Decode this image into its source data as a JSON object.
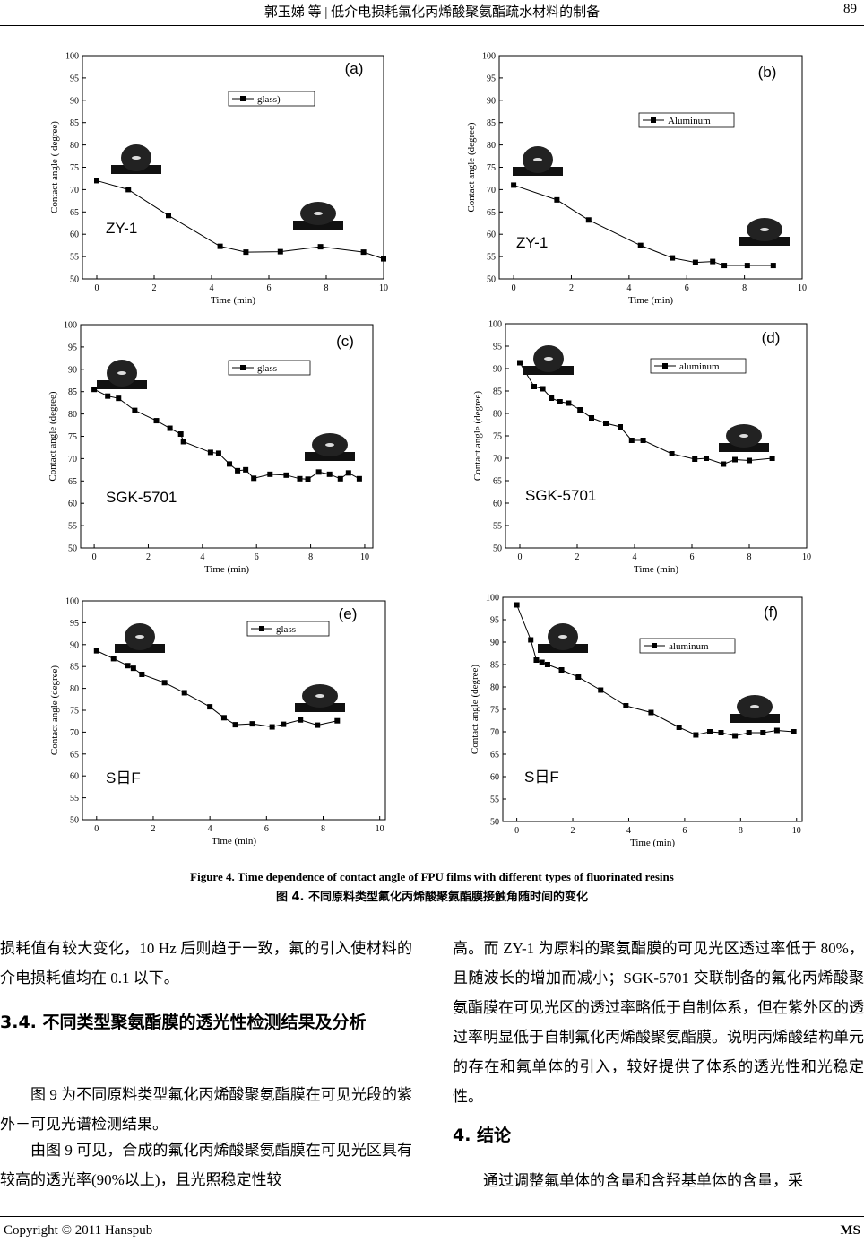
{
  "header": {
    "title": "郭玉娣  等 | 低介电损耗氟化丙烯酸聚氨酯疏水材料的制备",
    "page": "89"
  },
  "chart_data": [
    {
      "type": "line",
      "panel_label": "(a)",
      "sample_label": "ZY-1",
      "x_label": "Time (min)",
      "y_label": "Contact angle ( degree)",
      "x": [
        0,
        1.1,
        2.5,
        4.3,
        5.2,
        6.4,
        7.8,
        9.3,
        10
      ],
      "series": [
        {
          "name": "glass)",
          "color": "#000000",
          "values": [
            72,
            70,
            64.2,
            57.3,
            56,
            56.1,
            57.2,
            56,
            54.5
          ]
        }
      ],
      "xlim": [
        -0.5,
        10
      ],
      "ylim": [
        50,
        100
      ],
      "xticks": [
        0,
        2,
        4,
        6,
        8,
        10
      ],
      "yticks": [
        50,
        55,
        60,
        65,
        70,
        75,
        80,
        85,
        90,
        95,
        100
      ]
    },
    {
      "type": "line",
      "panel_label": "(b)",
      "sample_label": "ZY-1",
      "x_label": "Time (min)",
      "y_label": "Contact angle (degree)",
      "x": [
        0,
        1.5,
        2.6,
        4.4,
        5.5,
        6.3,
        6.9,
        7.3,
        8.1,
        9
      ],
      "series": [
        {
          "name": "Aluminum",
          "color": "#000000",
          "values": [
            71,
            67.7,
            63.2,
            57.5,
            54.7,
            53.7,
            53.9,
            53,
            53,
            53
          ]
        }
      ],
      "xlim": [
        -0.5,
        10
      ],
      "ylim": [
        50,
        100
      ],
      "xticks": [
        0,
        2,
        4,
        6,
        8,
        10
      ],
      "yticks": [
        50,
        55,
        60,
        65,
        70,
        75,
        80,
        85,
        90,
        95,
        100
      ]
    },
    {
      "type": "line",
      "panel_label": "(c)",
      "sample_label": "SGK-5701",
      "x_label": "Time (min)",
      "y_label": "Contact angle (degree)",
      "x": [
        0,
        0.5,
        0.9,
        1.5,
        2.3,
        2.8,
        3.2,
        3.3,
        4.3,
        4.6,
        5,
        5.3,
        5.6,
        5.9,
        6.5,
        7.1,
        7.6,
        7.9,
        8.3,
        8.7,
        9.1,
        9.4,
        9.8
      ],
      "series": [
        {
          "name": "glass",
          "color": "#000000",
          "values": [
            85.5,
            84,
            83.5,
            80.8,
            78.5,
            76.8,
            75.5,
            73.8,
            71.4,
            71.2,
            68.8,
            67.3,
            67.5,
            65.6,
            66.5,
            66.3,
            65.5,
            65.4,
            67,
            66.5,
            65.5,
            66.8,
            65.5
          ]
        }
      ],
      "xlim": [
        -0.5,
        10.3
      ],
      "ylim": [
        50,
        100
      ],
      "xticks": [
        0,
        2,
        4,
        6,
        8,
        10
      ],
      "yticks": [
        50,
        55,
        60,
        65,
        70,
        75,
        80,
        85,
        90,
        95,
        100
      ]
    },
    {
      "type": "line",
      "panel_label": "(d)",
      "sample_label": "SGK-5701",
      "x_label": "Time (min)",
      "y_label": "Contact angle (degree)",
      "x": [
        0,
        0.5,
        0.8,
        1.1,
        1.4,
        1.7,
        2.1,
        2.5,
        3,
        3.5,
        3.9,
        4.3,
        5.3,
        6.1,
        6.5,
        7.1,
        7.5,
        8,
        8.8
      ],
      "series": [
        {
          "name": "aluminum",
          "color": "#000000",
          "values": [
            91.3,
            86,
            85.5,
            83.4,
            82.6,
            82.3,
            80.8,
            79,
            77.8,
            77,
            74,
            74,
            71,
            69.8,
            70,
            68.7,
            69.7,
            69.5,
            70
          ]
        }
      ],
      "xlim": [
        -0.5,
        10
      ],
      "ylim": [
        50,
        100
      ],
      "xticks": [
        0,
        2,
        4,
        6,
        8,
        10
      ],
      "yticks": [
        50,
        55,
        60,
        65,
        70,
        75,
        80,
        85,
        90,
        95,
        100
      ]
    },
    {
      "type": "line",
      "panel_label": "(e)",
      "sample_label": "S日F",
      "x_label": "Time (min)",
      "y_label": "Contact angle (degree)",
      "x": [
        0,
        0.6,
        1.1,
        1.3,
        1.6,
        2.4,
        3.1,
        4,
        4.5,
        4.9,
        5.5,
        6.2,
        6.6,
        7.2,
        7.8,
        8.5
      ],
      "series": [
        {
          "name": "glass",
          "color": "#000000",
          "values": [
            88.6,
            86.8,
            85.2,
            84.6,
            83.2,
            81.3,
            79,
            75.8,
            73.3,
            71.7,
            71.9,
            71.2,
            71.8,
            72.8,
            71.6,
            72.6
          ]
        }
      ],
      "xlim": [
        -0.5,
        10.2
      ],
      "ylim": [
        50,
        100
      ],
      "xticks": [
        0,
        2,
        4,
        6,
        8,
        10
      ],
      "yticks": [
        50,
        55,
        60,
        65,
        70,
        75,
        80,
        85,
        90,
        95,
        100
      ]
    },
    {
      "type": "line",
      "panel_label": "(f)",
      "sample_label": "S日F",
      "x_label": "Time (min)",
      "y_label": "Contact angle (degree)",
      "x": [
        0,
        0.5,
        0.7,
        0.9,
        1.1,
        1.6,
        2.2,
        3,
        3.9,
        4.8,
        5.8,
        6.4,
        6.9,
        7.3,
        7.8,
        8.3,
        8.8,
        9.3,
        9.9
      ],
      "series": [
        {
          "name": "aluminum",
          "color": "#000000",
          "values": [
            98.3,
            90.5,
            86,
            85.5,
            85,
            83.8,
            82.2,
            79.3,
            75.8,
            74.3,
            71,
            69.3,
            70,
            69.8,
            69.1,
            69.8,
            69.8,
            70.3,
            70
          ]
        }
      ],
      "xlim": [
        -0.5,
        10.2
      ],
      "ylim": [
        50,
        100
      ],
      "xticks": [
        0,
        2,
        4,
        6,
        8,
        10
      ],
      "yticks": [
        50,
        55,
        60,
        65,
        70,
        75,
        80,
        85,
        90,
        95,
        100
      ]
    }
  ],
  "caption": {
    "en": "Figure 4. Time dependence of contact angle of FPU films with different types of fluorinated resins",
    "zh": "图 4.  不同原料类型氟化丙烯酸聚氨酯膜接触角随时间的变化"
  },
  "body": {
    "p1": "损耗值有较大变化，10 Hz 后则趋于一致，氟的引入使材料的介电损耗值均在 0.1 以下。",
    "h34": "3.4.  不同类型聚氨酯膜的透光性检测结果及分析",
    "p2": "图 9 为不同原料类型氟化丙烯酸聚氨酯膜在可见光段的紫外－可见光谱检测结果。",
    "p3": "由图 9 可见，合成的氟化丙烯酸聚氨酯膜在可见光区具有较高的透光率(90%以上)，且光照稳定性较",
    "p4": "高。而 ZY-1 为原料的聚氨酯膜的可见光区透过率低于 80%，且随波长的增加而减小；SGK-5701 交联制备的氟化丙烯酸聚氨酯膜在可见光区的透过率略低于自制体系，但在紫外区的透过率明显低于自制氟化丙烯酸聚氨酯膜。说明丙烯酸结构单元的存在和氟单体的引入，较好提供了体系的透光性和光稳定性。",
    "h4": "4.  结论",
    "p5": "通过调整氟单体的含量和含羟基单体的含量，采"
  },
  "footer": {
    "copyright": "Copyright © 2011 Hanspub",
    "journal": "MS"
  }
}
